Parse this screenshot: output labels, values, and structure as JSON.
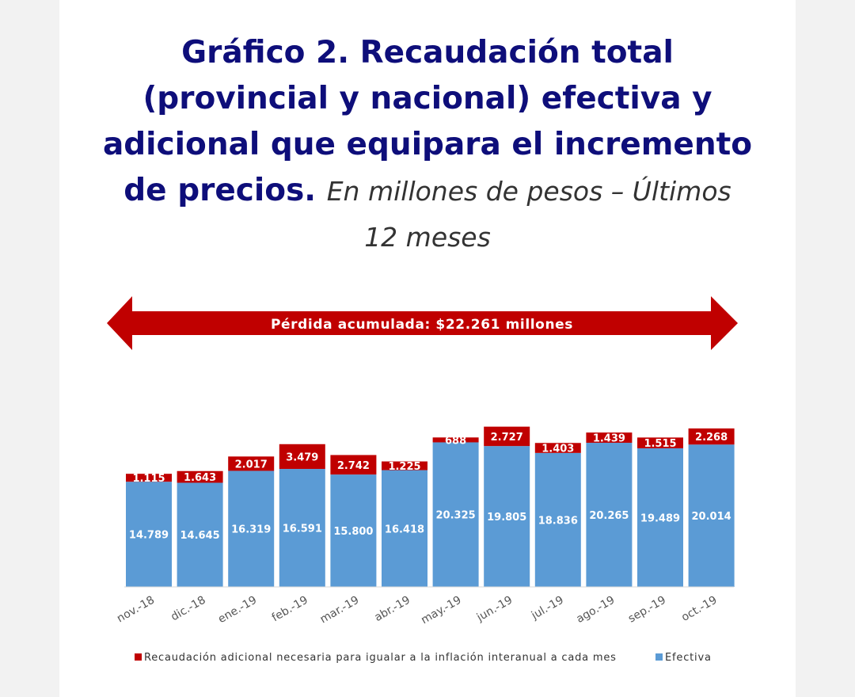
{
  "title": {
    "line1": "Gráfico 2. Recaudación total",
    "line2": "(provincial y nacional) efectiva y",
    "line3": "adicional que equipara el incremento",
    "line4_bold": "de precios.",
    "line4_italic": "En millones de pesos – Últimos",
    "line5_italic": "12 meses"
  },
  "arrow_label": "Pérdida acumulada: $22.261 millones",
  "colors": {
    "efectiva": "#5b9bd5",
    "adicional": "#c00000",
    "arrow": "#c00000",
    "title": "#0e0e7a"
  },
  "chart_data": {
    "type": "bar",
    "stacked": true,
    "categories": [
      "nov.-18",
      "dic.-18",
      "ene.-19",
      "feb.-19",
      "mar.-19",
      "abr.-19",
      "may.-19",
      "jun.-19",
      "jul.-19",
      "ago.-19",
      "sep.-19",
      "oct.-19"
    ],
    "series": [
      {
        "name": "Efectiva",
        "values": [
          14789,
          14645,
          16319,
          16591,
          15800,
          16418,
          20325,
          19805,
          18836,
          20265,
          19489,
          20014
        ],
        "labels": [
          "14.789",
          "14.645",
          "16.319",
          "16.591",
          "15.800",
          "16.418",
          "20.325",
          "19.805",
          "18.836",
          "20.265",
          "19.489",
          "20.014"
        ]
      },
      {
        "name": "Recaudación adicional necesaria para igualar a la inflación interanual a cada mes",
        "values": [
          1115,
          1643,
          2017,
          3479,
          2742,
          1225,
          688,
          2727,
          1403,
          1439,
          1515,
          2268
        ],
        "labels": [
          "1.115",
          "1.643",
          "2.017",
          "3.479",
          "2.742",
          "1.225",
          "688",
          "2.727",
          "1.403",
          "1.439",
          "1.515",
          "2.268"
        ]
      }
    ],
    "legend": [
      "Recaudación adicional necesaria para igualar a la inflación interanual a cada mes",
      "Efectiva"
    ],
    "legend_position": "bottom",
    "grid": false
  }
}
